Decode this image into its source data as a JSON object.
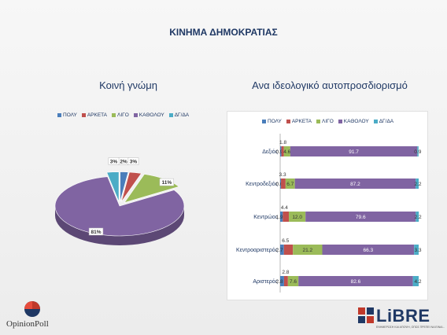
{
  "page_title": "ΚΙΝΗΜΑ ΔΗΜΟΚΡΑΤΙΑΣ",
  "colors": {
    "ΠΟΛΥ": "#4a7ebb",
    "ΑΡΚΕΤΑ": "#c0504d",
    "ΛΙΓΟ": "#9bbb59",
    "ΚΑΘΟΛΟΥ": "#8064a2",
    "ΔΓ/ΔΑ": "#4bacc6"
  },
  "chart_data": [
    {
      "type": "pie",
      "title": "Κοινή γνώμη",
      "legend": [
        "ΠΟΛΥ",
        "ΑΡΚΕΤΑ",
        "ΛΙΓΟ",
        "ΚΑΘΟΛΟΥ",
        "ΔΓ/ΔΑ"
      ],
      "legend_position": "top",
      "slices": [
        {
          "label": "ΠΟΛΥ",
          "value": 2,
          "display": "2%"
        },
        {
          "label": "ΑΡΚΕΤΑ",
          "value": 3,
          "display": "3%"
        },
        {
          "label": "ΛΙΓΟ",
          "value": 11,
          "display": "11%"
        },
        {
          "label": "ΚΑΘΟΛΟΥ",
          "value": 81,
          "display": "81%"
        },
        {
          "label": "ΔΓ/ΔΑ",
          "value": 3,
          "display": "3%"
        }
      ]
    },
    {
      "type": "bar",
      "orientation": "horizontal",
      "stacked": true,
      "title": "Ανα ιδεολογικό αυτοπροσδιορισμό",
      "legend_position": "top",
      "categories": [
        "Δεξιός",
        "Κεντροδεξιός",
        "Κεντρώος",
        "Κεντροαριστερός",
        "Αριστερός"
      ],
      "series": [
        {
          "name": "ΠΟΛΥ",
          "values": [
            0.9,
            0.6,
            1.9,
            2.7,
            2.8
          ]
        },
        {
          "name": "ΑΡΚΕΤΑ",
          "values": [
            1.8,
            3.3,
            4.4,
            6.5,
            2.8
          ]
        },
        {
          "name": "ΛΙΓΟ",
          "values": [
            4.6,
            6.7,
            12.0,
            21.2,
            7.6
          ]
        },
        {
          "name": "ΚΑΘΟΛΟΥ",
          "values": [
            91.7,
            87.2,
            79.6,
            66.3,
            82.6
          ]
        },
        {
          "name": "ΔΓ/ΔΑ",
          "values": [
            0.9,
            2.2,
            2.2,
            3.3,
            4.2
          ]
        }
      ],
      "xlim": [
        0,
        100
      ]
    }
  ],
  "logos": {
    "left": "OpinionPoll",
    "right": "LiBRE",
    "right_tagline": "ΕΝΗΜΕΡΩΣΗ ΚΑΙ ΑΠΟΨΗ, ΟΠΩΣ ΠΡΕΠΕΙ ΝΑ ΕΙΝΑΙ..."
  }
}
